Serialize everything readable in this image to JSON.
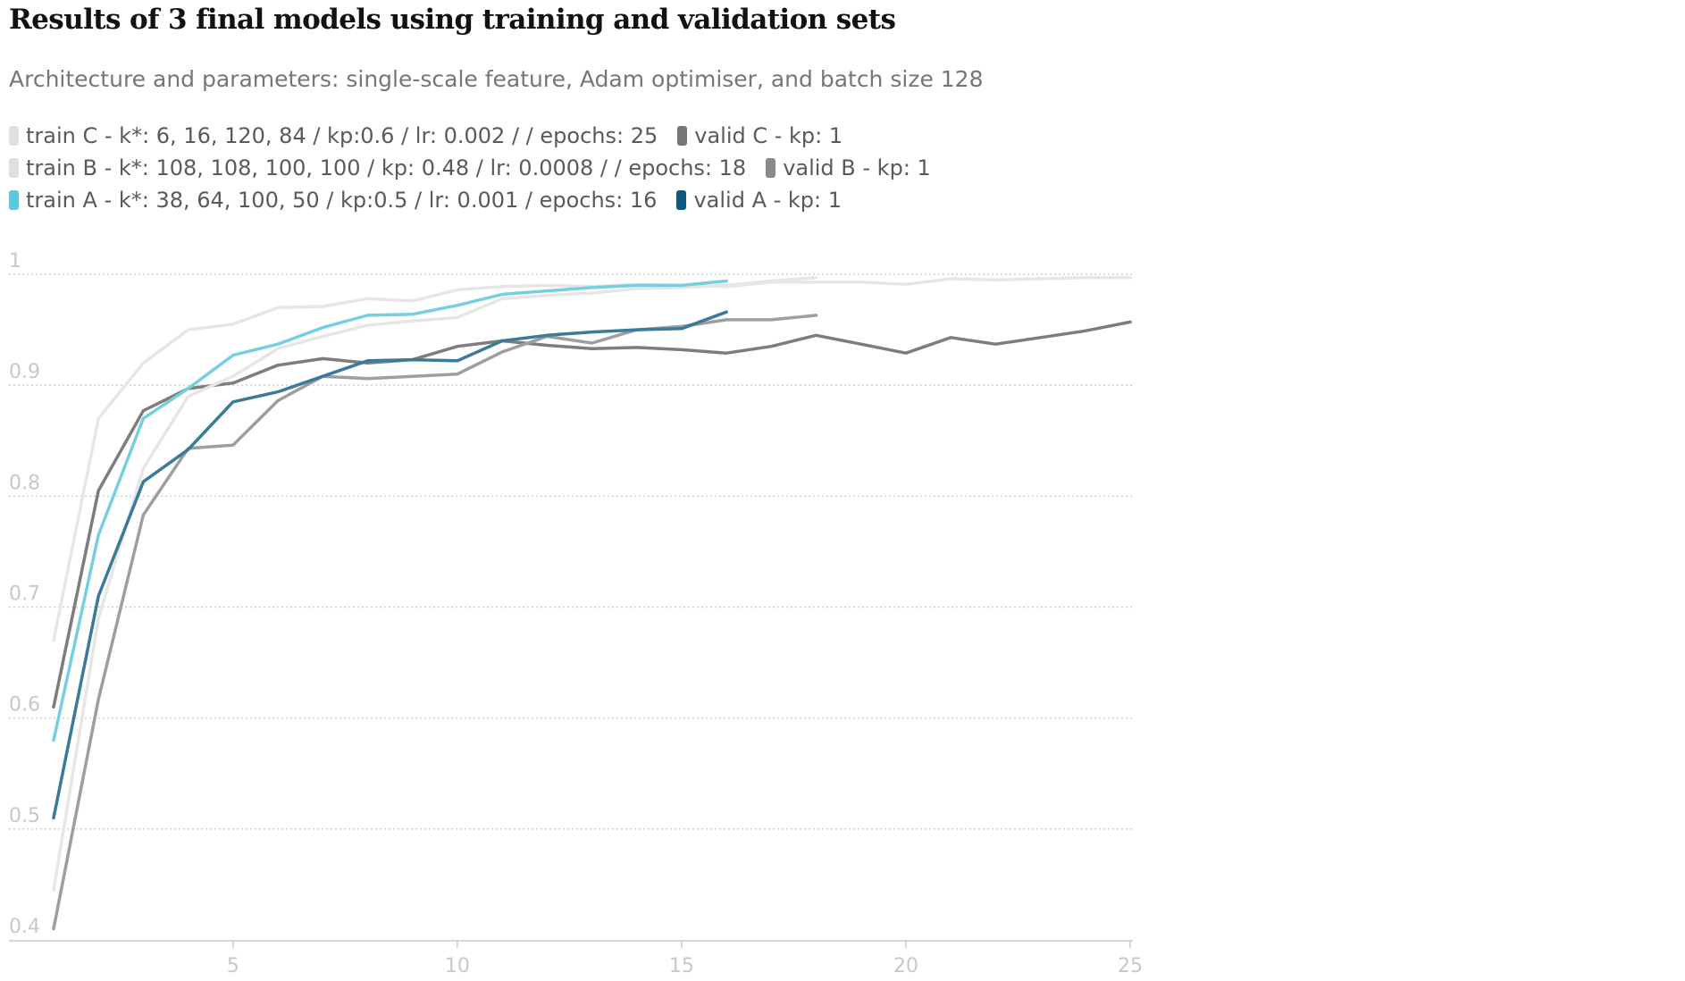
{
  "chart_data": {
    "type": "line",
    "title": "Results of 3 final models using training and validation sets",
    "subtitle": "Architecture and parameters: single-scale feature, Adam optimiser, and batch size 128",
    "xlabel": "",
    "ylabel": "",
    "xlim": [
      1,
      25
    ],
    "ylim": [
      0.4,
      1
    ],
    "xticks": [
      5,
      10,
      15,
      20,
      25
    ],
    "yticks": [
      0.4,
      0.5,
      0.6,
      0.7,
      0.8,
      0.9,
      1
    ],
    "ytick_labels": [
      "0.4",
      "0.5",
      "0.6",
      "0.7",
      "0.8",
      "0.9",
      "1"
    ],
    "xtick_labels": [
      "5",
      "10",
      "15",
      "20",
      "25"
    ],
    "grid": "horizontal dotted",
    "legend_position": "top-left",
    "series": [
      {
        "name": "train C - k*: 6, 16, 120, 84 / kp:0.6 / lr: 0.002 /  / epochs: 25",
        "color": "#e6e6e6",
        "x": [
          1,
          2,
          3,
          4,
          5,
          6,
          7,
          8,
          9,
          10,
          11,
          12,
          13,
          14,
          15,
          16,
          17,
          18,
          19,
          20,
          21,
          22,
          23,
          24,
          25
        ],
        "values": [
          0.67,
          0.87,
          0.92,
          0.95,
          0.955,
          0.97,
          0.971,
          0.978,
          0.976,
          0.986,
          0.989,
          0.99,
          0.989,
          0.991,
          0.99,
          0.989,
          0.993,
          0.993,
          0.993,
          0.991,
          0.996,
          0.995,
          0.996,
          0.997,
          0.997
        ]
      },
      {
        "name": "valid C - kp: 1",
        "color": "#7d7d7d",
        "x": [
          1,
          2,
          3,
          4,
          5,
          6,
          7,
          8,
          9,
          10,
          11,
          12,
          13,
          14,
          15,
          16,
          17,
          18,
          19,
          20,
          21,
          22,
          23,
          24,
          25
        ],
        "values": [
          0.61,
          0.805,
          0.877,
          0.897,
          0.902,
          0.918,
          0.924,
          0.92,
          0.923,
          0.935,
          0.94,
          0.936,
          0.933,
          0.934,
          0.932,
          0.929,
          0.935,
          0.945,
          0.937,
          0.929,
          0.943,
          0.937,
          0.943,
          0.949,
          0.957
        ]
      },
      {
        "name": "train B - k*: 108, 108, 100, 100 / kp: 0.48 / lr: 0.0008 /  / epochs: 18",
        "color": "#e6e6e6",
        "x": [
          1,
          2,
          3,
          4,
          5,
          6,
          7,
          8,
          9,
          10,
          11,
          12,
          13,
          14,
          15,
          16,
          17,
          18
        ],
        "values": [
          0.445,
          0.69,
          0.825,
          0.89,
          0.908,
          0.933,
          0.944,
          0.954,
          0.958,
          0.961,
          0.978,
          0.981,
          0.983,
          0.987,
          0.988,
          0.99,
          0.994,
          0.997
        ]
      },
      {
        "name": "valid B - kp: 1",
        "color": "#9e9e9e",
        "x": [
          1,
          2,
          3,
          4,
          5,
          6,
          7,
          8,
          9,
          10,
          11,
          12,
          13,
          14,
          15,
          16,
          17,
          18
        ],
        "values": [
          0.41,
          0.617,
          0.783,
          0.843,
          0.846,
          0.886,
          0.908,
          0.906,
          0.908,
          0.91,
          0.93,
          0.944,
          0.938,
          0.95,
          0.953,
          0.959,
          0.959,
          0.963
        ]
      },
      {
        "name": "train A - k*: 38, 64, 100, 50 / kp:0.5  / lr: 0.001 / epochs: 16",
        "color": "#74d0e0",
        "x": [
          1,
          2,
          3,
          4,
          5,
          6,
          7,
          8,
          9,
          10,
          11,
          12,
          13,
          14,
          15,
          16
        ],
        "values": [
          0.58,
          0.765,
          0.87,
          0.897,
          0.927,
          0.937,
          0.952,
          0.963,
          0.964,
          0.972,
          0.982,
          0.985,
          0.988,
          0.99,
          0.99,
          0.994
        ]
      },
      {
        "name": "valid A - kp: 1",
        "color": "#3a7a9a",
        "x": [
          1,
          2,
          3,
          4,
          5,
          6,
          7,
          8,
          9,
          10,
          11,
          12,
          13,
          14,
          15,
          16
        ],
        "values": [
          0.51,
          0.71,
          0.813,
          0.842,
          0.885,
          0.894,
          0.908,
          0.922,
          0.923,
          0.922,
          0.94,
          0.945,
          0.948,
          0.95,
          0.951,
          0.966
        ]
      }
    ],
    "legend_swatches": [
      {
        "name": "train C - k*: 6, 16, 120, 84 / kp:0.6 / lr: 0.002 /  / epochs: 25",
        "color": "#e0e0e0"
      },
      {
        "name": "valid C - kp: 1",
        "color": "#767676"
      },
      {
        "name": "train B - k*: 108, 108, 100, 100 / kp: 0.48 / lr: 0.0008 /  / epochs: 18",
        "color": "#e0e0e0"
      },
      {
        "name": "valid B - kp: 1",
        "color": "#8a8a8a"
      },
      {
        "name": "train A - k*: 38, 64, 100, 50 / kp:0.5  / lr: 0.001 / epochs: 16",
        "color": "#5bc8dc"
      },
      {
        "name": "valid A - kp: 1",
        "color": "#0b5a85"
      }
    ]
  }
}
